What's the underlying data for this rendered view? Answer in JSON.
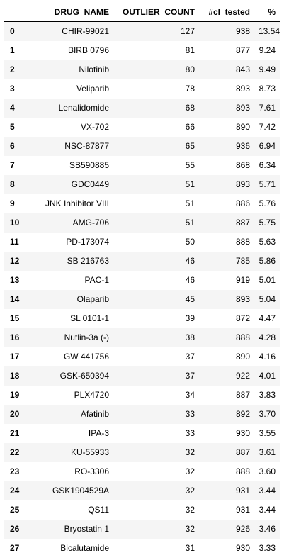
{
  "table": {
    "columns": [
      "DRUG_NAME",
      "OUTLIER_COUNT",
      "#cl_tested",
      "%"
    ],
    "rows": [
      {
        "index": "0",
        "drug_name": "CHIR-99021",
        "outlier_count": "127",
        "cl_tested": "938",
        "pct": "13.54"
      },
      {
        "index": "1",
        "drug_name": "BIRB 0796",
        "outlier_count": "81",
        "cl_tested": "877",
        "pct": "9.24"
      },
      {
        "index": "2",
        "drug_name": "Nilotinib",
        "outlier_count": "80",
        "cl_tested": "843",
        "pct": "9.49"
      },
      {
        "index": "3",
        "drug_name": "Veliparib",
        "outlier_count": "78",
        "cl_tested": "893",
        "pct": "8.73"
      },
      {
        "index": "4",
        "drug_name": "Lenalidomide",
        "outlier_count": "68",
        "cl_tested": "893",
        "pct": "7.61"
      },
      {
        "index": "5",
        "drug_name": "VX-702",
        "outlier_count": "66",
        "cl_tested": "890",
        "pct": "7.42"
      },
      {
        "index": "6",
        "drug_name": "NSC-87877",
        "outlier_count": "65",
        "cl_tested": "936",
        "pct": "6.94"
      },
      {
        "index": "7",
        "drug_name": "SB590885",
        "outlier_count": "55",
        "cl_tested": "868",
        "pct": "6.34"
      },
      {
        "index": "8",
        "drug_name": "GDC0449",
        "outlier_count": "51",
        "cl_tested": "893",
        "pct": "5.71"
      },
      {
        "index": "9",
        "drug_name": "JNK Inhibitor VIII",
        "outlier_count": "51",
        "cl_tested": "886",
        "pct": "5.76"
      },
      {
        "index": "10",
        "drug_name": "AMG-706",
        "outlier_count": "51",
        "cl_tested": "887",
        "pct": "5.75"
      },
      {
        "index": "11",
        "drug_name": "PD-173074",
        "outlier_count": "50",
        "cl_tested": "888",
        "pct": "5.63"
      },
      {
        "index": "12",
        "drug_name": "SB 216763",
        "outlier_count": "46",
        "cl_tested": "785",
        "pct": "5.86"
      },
      {
        "index": "13",
        "drug_name": "PAC-1",
        "outlier_count": "46",
        "cl_tested": "919",
        "pct": "5.01"
      },
      {
        "index": "14",
        "drug_name": "Olaparib",
        "outlier_count": "45",
        "cl_tested": "893",
        "pct": "5.04"
      },
      {
        "index": "15",
        "drug_name": "SL 0101-1",
        "outlier_count": "39",
        "cl_tested": "872",
        "pct": "4.47"
      },
      {
        "index": "16",
        "drug_name": "Nutlin-3a (-)",
        "outlier_count": "38",
        "cl_tested": "888",
        "pct": "4.28"
      },
      {
        "index": "17",
        "drug_name": "GW 441756",
        "outlier_count": "37",
        "cl_tested": "890",
        "pct": "4.16"
      },
      {
        "index": "18",
        "drug_name": "GSK-650394",
        "outlier_count": "37",
        "cl_tested": "922",
        "pct": "4.01"
      },
      {
        "index": "19",
        "drug_name": "PLX4720",
        "outlier_count": "34",
        "cl_tested": "887",
        "pct": "3.83"
      },
      {
        "index": "20",
        "drug_name": "Afatinib",
        "outlier_count": "33",
        "cl_tested": "892",
        "pct": "3.70"
      },
      {
        "index": "21",
        "drug_name": "IPA-3",
        "outlier_count": "33",
        "cl_tested": "930",
        "pct": "3.55"
      },
      {
        "index": "22",
        "drug_name": "KU-55933",
        "outlier_count": "32",
        "cl_tested": "887",
        "pct": "3.61"
      },
      {
        "index": "23",
        "drug_name": "RO-3306",
        "outlier_count": "32",
        "cl_tested": "888",
        "pct": "3.60"
      },
      {
        "index": "24",
        "drug_name": "GSK1904529A",
        "outlier_count": "32",
        "cl_tested": "931",
        "pct": "3.44"
      },
      {
        "index": "25",
        "drug_name": "QS11",
        "outlier_count": "32",
        "cl_tested": "931",
        "pct": "3.44"
      },
      {
        "index": "26",
        "drug_name": "Bryostatin 1",
        "outlier_count": "32",
        "cl_tested": "926",
        "pct": "3.46"
      },
      {
        "index": "27",
        "drug_name": "Bicalutamide",
        "outlier_count": "31",
        "cl_tested": "930",
        "pct": "3.33"
      }
    ]
  },
  "colors": {
    "stripe": "#f5f5f5",
    "background": "#ffffff",
    "text": "#000000"
  }
}
